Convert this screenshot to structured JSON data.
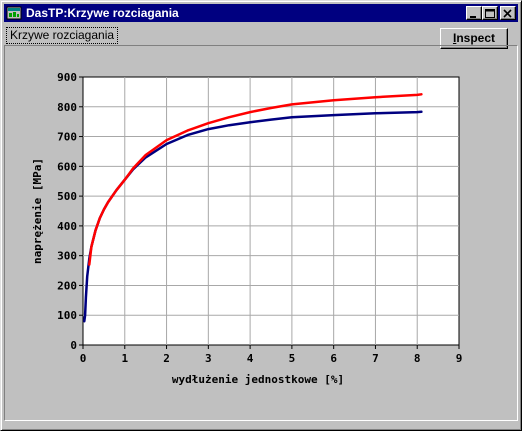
{
  "window": {
    "title": "DasTP:Krzywe rozciagania",
    "icon": "app-chart-icon"
  },
  "tab": {
    "label": "Krzywe rozciagania"
  },
  "toolbar": {
    "inspect_label_u": "I",
    "inspect_label_rest": "nspect"
  },
  "colors": {
    "titlebar": "#000080",
    "series_blue": "#000080",
    "series_red": "#ff0000"
  },
  "chart_data": {
    "type": "line",
    "title": "",
    "xlabel": "wydłużenie jednostkowe [%]",
    "ylabel": "naprężenie [MPa]",
    "xlim": [
      0,
      9
    ],
    "ylim": [
      0,
      900
    ],
    "xticks": [
      "0",
      "1",
      "2",
      "3",
      "4",
      "5",
      "6",
      "7",
      "8",
      "9"
    ],
    "yticks": [
      "0",
      "100",
      "200",
      "300",
      "400",
      "500",
      "600",
      "700",
      "800",
      "900"
    ],
    "grid": true,
    "series": [
      {
        "color": "#000080",
        "x": [
          0.03,
          0.05,
          0.07,
          0.1,
          0.15,
          0.2,
          0.3,
          0.4,
          0.5,
          0.6,
          0.8,
          1.0,
          1.2,
          1.5,
          2.0,
          2.5,
          3.0,
          3.5,
          4.0,
          4.5,
          5.0,
          6.0,
          7.0,
          8.0,
          8.1
        ],
        "y": [
          80,
          100,
          160,
          230,
          290,
          330,
          385,
          425,
          455,
          480,
          520,
          555,
          590,
          630,
          675,
          705,
          725,
          738,
          748,
          757,
          765,
          772,
          778,
          782,
          783
        ]
      },
      {
        "color": "#ff0000",
        "x": [
          0.15,
          0.2,
          0.3,
          0.4,
          0.5,
          0.6,
          0.8,
          1.0,
          1.2,
          1.5,
          2.0,
          2.5,
          3.0,
          3.5,
          4.0,
          4.5,
          5.0,
          6.0,
          7.0,
          8.0,
          8.1
        ],
        "y": [
          270,
          330,
          385,
          425,
          455,
          480,
          520,
          555,
          593,
          638,
          688,
          720,
          745,
          765,
          782,
          796,
          808,
          822,
          832,
          840,
          842
        ]
      }
    ]
  }
}
